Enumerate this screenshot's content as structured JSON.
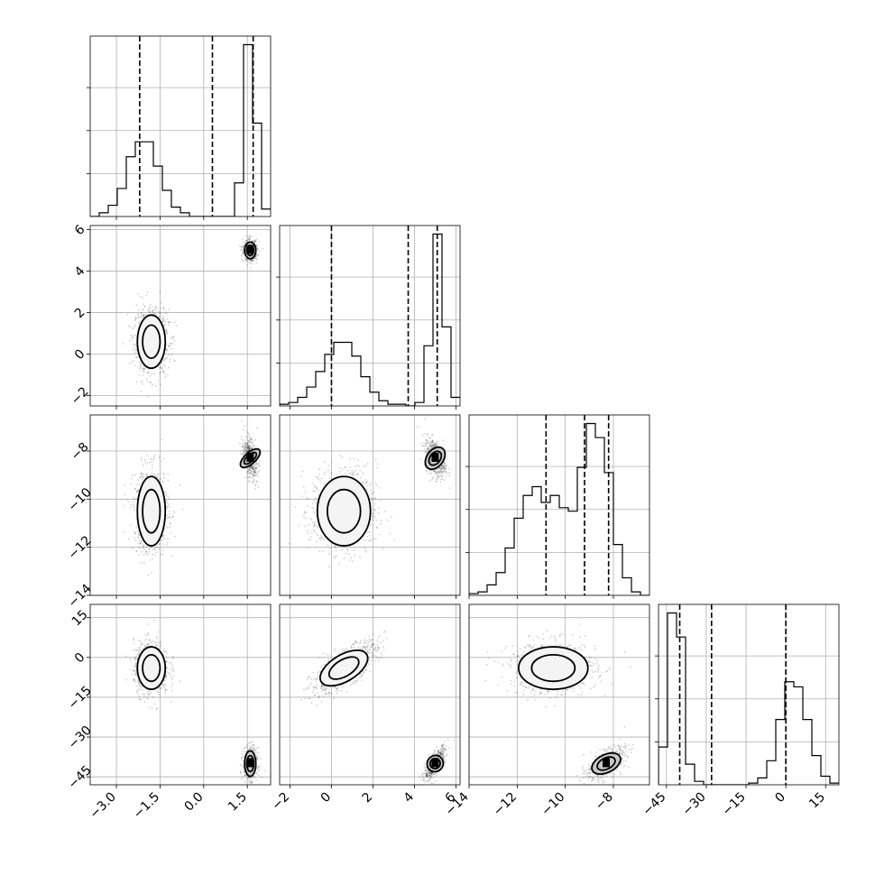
{
  "chart_data": {
    "type": "corner",
    "title": "",
    "parameters": [
      {
        "range": [
          -3.9,
          2.3
        ],
        "ticks": [
          -3.0,
          -1.5,
          0.0,
          1.5
        ],
        "tick_labels": [
          "−3.0",
          "−1.5",
          "0.0",
          "1.5"
        ]
      },
      {
        "range": [
          -2.5,
          6.2
        ],
        "ticks": [
          -2,
          0,
          2,
          4,
          6
        ],
        "tick_labels": [
          "−2",
          "0",
          "2",
          "4",
          "6"
        ]
      },
      {
        "range": [
          -14,
          -6.5
        ],
        "ticks": [
          -14,
          -12,
          -10,
          -8
        ],
        "tick_labels": [
          "−14",
          "−12",
          "−10",
          "−8"
        ]
      },
      {
        "range": [
          -48,
          20
        ],
        "ticks": [
          -45,
          -30,
          -15,
          0,
          15
        ],
        "tick_labels": [
          "−45",
          "−30",
          "−15",
          "0",
          "15"
        ]
      }
    ],
    "quantiles": [
      [
        -2.2,
        0.3,
        1.7
      ],
      [
        0.0,
        3.7,
        5.1
      ],
      [
        -10.8,
        -9.2,
        -8.2
      ],
      [
        -40,
        -28,
        0
      ]
    ],
    "histograms": [
      {
        "edges_start": -3.9,
        "bin_width": 0.31,
        "counts": [
          0,
          0.02,
          0.06,
          0.15,
          0.32,
          0.4,
          0.4,
          0.27,
          0.14,
          0.05,
          0.02,
          0,
          0,
          0,
          0,
          0,
          0.18,
          0.92,
          0.5,
          0.04
        ]
      },
      {
        "edges_start": -2.5,
        "bin_width": 0.435,
        "counts": [
          0.01,
          0.02,
          0.05,
          0.11,
          0.2,
          0.3,
          0.37,
          0.37,
          0.29,
          0.17,
          0.08,
          0.03,
          0.01,
          0.01,
          0,
          0.02,
          0.35,
          1.0,
          0.46,
          0.05
        ]
      },
      {
        "edges_start": -14,
        "bin_width": 0.375,
        "counts": [
          0.01,
          0.02,
          0.06,
          0.13,
          0.27,
          0.44,
          0.57,
          0.62,
          0.53,
          0.57,
          0.5,
          0.48,
          0.73,
          0.98,
          0.9,
          0.7,
          0.29,
          0.1,
          0.02,
          0
        ]
      },
      {
        "edges_start": -48,
        "bin_width": 3.4,
        "counts": [
          0.22,
          1.0,
          0.86,
          0.12,
          0.02,
          0,
          0,
          0,
          0,
          0,
          0.01,
          0.04,
          0.14,
          0.38,
          0.6,
          0.57,
          0.38,
          0.17,
          0.05,
          0.01
        ]
      }
    ],
    "modes": [
      {
        "weight": 0.6,
        "mean": [
          -1.8,
          0.6,
          -10.5,
          -4
        ],
        "std": [
          0.3,
          0.8,
          0.9,
          5
        ]
      },
      {
        "weight": 0.4,
        "mean": [
          1.6,
          5.0,
          -8.3,
          -40
        ],
        "std": [
          0.12,
          0.25,
          0.4,
          3
        ]
      }
    ],
    "grid": true,
    "legend": ""
  }
}
